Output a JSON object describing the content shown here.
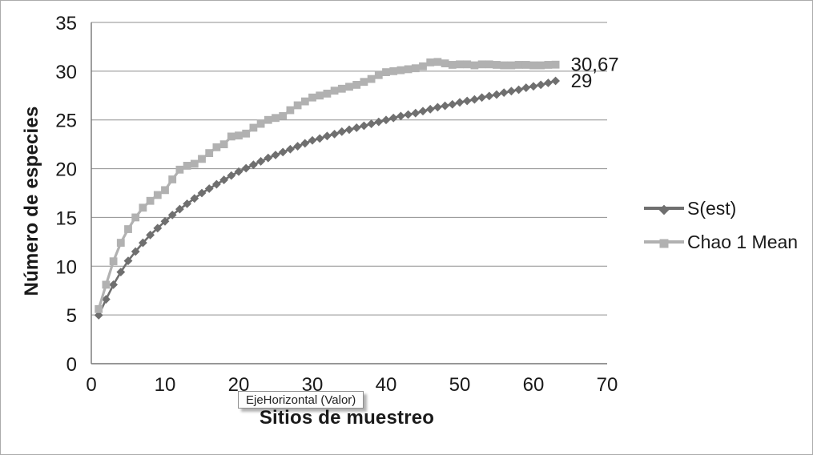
{
  "chart_data": {
    "type": "line",
    "title": "",
    "xlabel": "Sitios de muestreo",
    "ylabel": "Número de especies",
    "xlim": [
      0,
      70
    ],
    "ylim": [
      0,
      35
    ],
    "x_ticks": [
      0,
      10,
      20,
      30,
      40,
      50,
      60,
      70
    ],
    "y_ticks": [
      0,
      5,
      10,
      15,
      20,
      25,
      30,
      35
    ],
    "grid": "horizontal",
    "legend_position": "right",
    "x_start": 1,
    "x_step": 1,
    "colors": {
      "grid": "#8f8f8f",
      "axis": "#757575",
      "text": "#1a1a1a"
    },
    "series": [
      {
        "name": "S(est)",
        "color": "#6f6f6f",
        "marker": "diamond",
        "line_width": 2.6,
        "end_label": "29",
        "values": [
          4.97,
          6.6,
          8.1,
          9.4,
          10.55,
          11.5,
          12.4,
          13.2,
          13.9,
          14.6,
          15.25,
          15.85,
          16.4,
          16.95,
          17.5,
          17.95,
          18.4,
          18.85,
          19.3,
          19.7,
          20.05,
          20.4,
          20.75,
          21.1,
          21.4,
          21.7,
          22.0,
          22.3,
          22.6,
          22.9,
          23.1,
          23.35,
          23.55,
          23.8,
          24.0,
          24.2,
          24.4,
          24.6,
          24.8,
          25.0,
          25.2,
          25.4,
          25.55,
          25.7,
          25.9,
          26.1,
          26.3,
          26.45,
          26.6,
          26.8,
          26.95,
          27.1,
          27.3,
          27.45,
          27.6,
          27.8,
          27.95,
          28.1,
          28.3,
          28.45,
          28.6,
          28.8,
          29.0
        ]
      },
      {
        "name": "Chao 1 Mean",
        "color": "#b1b1b1",
        "marker": "square",
        "line_width": 3.2,
        "end_label": "30,67",
        "values": [
          5.6,
          8.1,
          10.5,
          12.4,
          13.8,
          15.0,
          16.0,
          16.7,
          17.3,
          17.8,
          18.9,
          19.9,
          20.3,
          20.5,
          21.0,
          21.6,
          22.2,
          22.5,
          23.3,
          23.4,
          23.6,
          24.2,
          24.6,
          25.0,
          25.2,
          25.4,
          26.0,
          26.5,
          26.9,
          27.3,
          27.5,
          27.7,
          28.0,
          28.2,
          28.4,
          28.6,
          28.9,
          29.2,
          29.6,
          29.9,
          30.0,
          30.1,
          30.2,
          30.3,
          30.5,
          30.9,
          30.95,
          30.8,
          30.65,
          30.7,
          30.7,
          30.6,
          30.7,
          30.7,
          30.65,
          30.6,
          30.6,
          30.65,
          30.65,
          30.6,
          30.6,
          30.65,
          30.67
        ]
      }
    ]
  },
  "tooltip": {
    "text": "EjeHorizontal (Valor)"
  }
}
